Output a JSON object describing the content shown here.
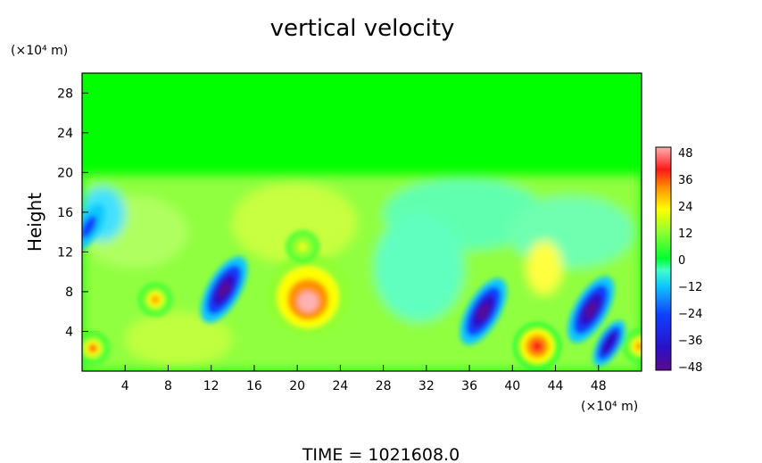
{
  "chart_data": {
    "type": "heatmap",
    "title": "vertical velocity",
    "ylabel": "Height",
    "y_unit": "(×10⁴ m)",
    "x_unit": "(×10⁴ m)",
    "xlim": [
      0,
      52
    ],
    "ylim": [
      0,
      30
    ],
    "x_ticks": [
      "4",
      "8",
      "12",
      "16",
      "20",
      "24",
      "28",
      "32",
      "36",
      "40",
      "44",
      "48"
    ],
    "y_ticks": [
      "4",
      "8",
      "12",
      "16",
      "20",
      "24",
      "28"
    ],
    "colorbar": {
      "min": -48,
      "max": 48,
      "labels": [
        "48",
        "36",
        "24",
        "12",
        "0",
        "−12",
        "−24",
        "−36",
        "−48"
      ]
    },
    "features": [
      {
        "x": 21,
        "y": 7,
        "value": 48
      },
      {
        "x": 20.5,
        "y": 12.5,
        "value": 24
      },
      {
        "x": 6.8,
        "y": 7.2,
        "value": 34
      },
      {
        "x": 1,
        "y": 2.3,
        "value": 40
      },
      {
        "x": 42.3,
        "y": 2.5,
        "value": 42
      },
      {
        "x": 51.8,
        "y": 2.5,
        "value": 36
      },
      {
        "x": 13.2,
        "y": 8.2,
        "value": -42
      },
      {
        "x": 37.3,
        "y": 6,
        "value": -46
      },
      {
        "x": 47.3,
        "y": 6.2,
        "value": -44
      },
      {
        "x": 49,
        "y": 2.8,
        "value": -34
      },
      {
        "x": 0.6,
        "y": 14.5,
        "value": -24
      }
    ]
  },
  "footer": {
    "time_label": "TIME  =  1021608.0"
  }
}
